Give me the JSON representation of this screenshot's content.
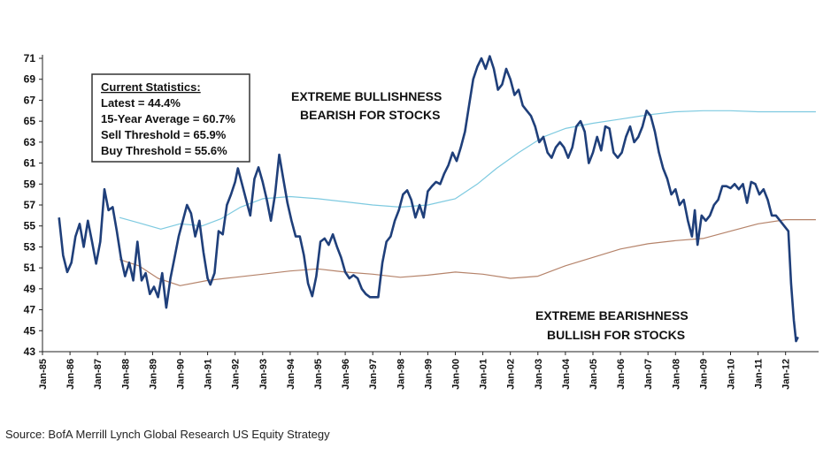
{
  "chart_data": {
    "type": "line",
    "ylim": [
      43,
      71
    ],
    "yticks": [
      43,
      45,
      47,
      49,
      51,
      53,
      55,
      57,
      59,
      61,
      63,
      65,
      67,
      69,
      71
    ],
    "xticks": [
      "Jan-85",
      "Jan-86",
      "Jan-87",
      "Jan-88",
      "Jan-89",
      "Jan-90",
      "Jan-91",
      "Jan-92",
      "Jan-93",
      "Jan-94",
      "Jan-95",
      "Jan-96",
      "Jan-97",
      "Jan-98",
      "Jan-99",
      "Jan-00",
      "Jan-01",
      "Jan-02",
      "Jan-03",
      "Jan-04",
      "Jan-05",
      "Jan-06",
      "Jan-07",
      "Jan-08",
      "Jan-09",
      "Jan-10",
      "Jan-11",
      "Jan-12"
    ],
    "xlim": [
      1985.0,
      2013.2
    ],
    "series": [
      {
        "key": "sell_side_indicator",
        "color": "#1f3f7a",
        "points": [
          [
            1985.6,
            55.8
          ],
          [
            1985.75,
            52.2
          ],
          [
            1985.9,
            50.6
          ],
          [
            1986.05,
            51.5
          ],
          [
            1986.2,
            54.0
          ],
          [
            1986.35,
            55.2
          ],
          [
            1986.5,
            53.0
          ],
          [
            1986.65,
            55.5
          ],
          [
            1986.8,
            53.5
          ],
          [
            1986.95,
            51.4
          ],
          [
            1987.1,
            53.5
          ],
          [
            1987.25,
            58.5
          ],
          [
            1987.4,
            56.5
          ],
          [
            1987.55,
            56.8
          ],
          [
            1987.7,
            54.5
          ],
          [
            1987.85,
            52.0
          ],
          [
            1988.0,
            50.2
          ],
          [
            1988.15,
            51.5
          ],
          [
            1988.3,
            49.8
          ],
          [
            1988.45,
            53.5
          ],
          [
            1988.6,
            49.8
          ],
          [
            1988.75,
            50.5
          ],
          [
            1988.9,
            48.5
          ],
          [
            1989.05,
            49.2
          ],
          [
            1989.2,
            48.2
          ],
          [
            1989.35,
            50.5
          ],
          [
            1989.5,
            47.2
          ],
          [
            1989.65,
            50.0
          ],
          [
            1989.8,
            52.0
          ],
          [
            1989.95,
            54.0
          ],
          [
            1990.1,
            55.5
          ],
          [
            1990.25,
            57.0
          ],
          [
            1990.4,
            56.2
          ],
          [
            1990.55,
            54.0
          ],
          [
            1990.7,
            55.5
          ],
          [
            1990.85,
            52.5
          ],
          [
            1991.0,
            50.0
          ],
          [
            1991.1,
            49.4
          ],
          [
            1991.25,
            50.5
          ],
          [
            1991.4,
            54.5
          ],
          [
            1991.55,
            54.2
          ],
          [
            1991.7,
            57.0
          ],
          [
            1991.85,
            58.0
          ],
          [
            1992.0,
            59.2
          ],
          [
            1992.1,
            60.5
          ],
          [
            1992.25,
            59.0
          ],
          [
            1992.4,
            57.5
          ],
          [
            1992.55,
            56.0
          ],
          [
            1992.7,
            59.5
          ],
          [
            1992.85,
            60.6
          ],
          [
            1993.0,
            59.2
          ],
          [
            1993.15,
            57.5
          ],
          [
            1993.3,
            55.5
          ],
          [
            1993.45,
            58.0
          ],
          [
            1993.6,
            61.8
          ],
          [
            1993.75,
            59.5
          ],
          [
            1993.9,
            57.2
          ],
          [
            1994.05,
            55.5
          ],
          [
            1994.2,
            54.0
          ],
          [
            1994.35,
            54.0
          ],
          [
            1994.5,
            52.2
          ],
          [
            1994.65,
            49.5
          ],
          [
            1994.8,
            48.3
          ],
          [
            1994.95,
            50.2
          ],
          [
            1995.1,
            53.5
          ],
          [
            1995.25,
            53.8
          ],
          [
            1995.4,
            53.2
          ],
          [
            1995.55,
            54.2
          ],
          [
            1995.7,
            53.0
          ],
          [
            1995.85,
            52.0
          ],
          [
            1996.0,
            50.6
          ],
          [
            1996.15,
            50.0
          ],
          [
            1996.3,
            50.3
          ],
          [
            1996.45,
            50.0
          ],
          [
            1996.6,
            49.0
          ],
          [
            1996.75,
            48.5
          ],
          [
            1996.9,
            48.2
          ],
          [
            1997.05,
            48.2
          ],
          [
            1997.2,
            48.2
          ],
          [
            1997.35,
            51.5
          ],
          [
            1997.5,
            53.5
          ],
          [
            1997.65,
            54.0
          ],
          [
            1997.8,
            55.5
          ],
          [
            1997.95,
            56.5
          ],
          [
            1998.1,
            58.0
          ],
          [
            1998.25,
            58.4
          ],
          [
            1998.4,
            57.5
          ],
          [
            1998.55,
            55.8
          ],
          [
            1998.7,
            57.0
          ],
          [
            1998.85,
            55.8
          ],
          [
            1999.0,
            58.3
          ],
          [
            1999.15,
            58.8
          ],
          [
            1999.3,
            59.2
          ],
          [
            1999.45,
            59.0
          ],
          [
            1999.6,
            60.0
          ],
          [
            1999.75,
            60.8
          ],
          [
            1999.9,
            62.0
          ],
          [
            2000.05,
            61.2
          ],
          [
            2000.2,
            62.5
          ],
          [
            2000.35,
            64.0
          ],
          [
            2000.5,
            66.5
          ],
          [
            2000.65,
            69.0
          ],
          [
            2000.8,
            70.2
          ],
          [
            2000.95,
            71.0
          ],
          [
            2001.1,
            70.0
          ],
          [
            2001.25,
            71.2
          ],
          [
            2001.4,
            70.0
          ],
          [
            2001.55,
            68.0
          ],
          [
            2001.7,
            68.5
          ],
          [
            2001.85,
            70.0
          ],
          [
            2002.0,
            69.0
          ],
          [
            2002.15,
            67.5
          ],
          [
            2002.3,
            68.0
          ],
          [
            2002.45,
            66.5
          ],
          [
            2002.6,
            66.0
          ],
          [
            2002.75,
            65.5
          ],
          [
            2002.9,
            64.5
          ],
          [
            2003.05,
            63.0
          ],
          [
            2003.2,
            63.5
          ],
          [
            2003.35,
            62.0
          ],
          [
            2003.5,
            61.5
          ],
          [
            2003.65,
            62.5
          ],
          [
            2003.8,
            63.0
          ],
          [
            2003.95,
            62.5
          ],
          [
            2004.1,
            61.5
          ],
          [
            2004.25,
            62.5
          ],
          [
            2004.4,
            64.5
          ],
          [
            2004.55,
            65.0
          ],
          [
            2004.7,
            64.0
          ],
          [
            2004.85,
            61.0
          ],
          [
            2005.0,
            62.0
          ],
          [
            2005.15,
            63.5
          ],
          [
            2005.3,
            62.2
          ],
          [
            2005.45,
            64.5
          ],
          [
            2005.6,
            64.3
          ],
          [
            2005.75,
            62.0
          ],
          [
            2005.9,
            61.5
          ],
          [
            2006.05,
            62.0
          ],
          [
            2006.2,
            63.5
          ],
          [
            2006.35,
            64.5
          ],
          [
            2006.5,
            63.0
          ],
          [
            2006.65,
            63.5
          ],
          [
            2006.8,
            64.5
          ],
          [
            2006.95,
            66.0
          ],
          [
            2007.1,
            65.5
          ],
          [
            2007.25,
            64.0
          ],
          [
            2007.4,
            62.0
          ],
          [
            2007.55,
            60.5
          ],
          [
            2007.7,
            59.5
          ],
          [
            2007.85,
            58.0
          ],
          [
            2008.0,
            58.5
          ],
          [
            2008.15,
            57.0
          ],
          [
            2008.3,
            57.5
          ],
          [
            2008.45,
            55.5
          ],
          [
            2008.6,
            54.0
          ],
          [
            2008.7,
            56.5
          ],
          [
            2008.8,
            53.2
          ],
          [
            2008.95,
            56.0
          ],
          [
            2009.1,
            55.5
          ],
          [
            2009.25,
            56.0
          ],
          [
            2009.4,
            57.0
          ],
          [
            2009.55,
            57.5
          ],
          [
            2009.7,
            58.8
          ],
          [
            2009.85,
            58.8
          ],
          [
            2010.0,
            58.6
          ],
          [
            2010.15,
            59.0
          ],
          [
            2010.3,
            58.5
          ],
          [
            2010.45,
            59.0
          ],
          [
            2010.6,
            57.2
          ],
          [
            2010.75,
            59.2
          ],
          [
            2010.9,
            59.0
          ],
          [
            2011.05,
            58.0
          ],
          [
            2011.2,
            58.5
          ],
          [
            2011.35,
            57.5
          ],
          [
            2011.5,
            56.0
          ],
          [
            2011.65,
            56.0
          ],
          [
            2011.8,
            55.5
          ],
          [
            2011.95,
            55.0
          ],
          [
            2012.1,
            54.5
          ],
          [
            2012.2,
            49.5
          ],
          [
            2012.3,
            46.0
          ],
          [
            2012.38,
            44.0
          ],
          [
            2012.45,
            44.4
          ]
        ]
      },
      {
        "key": "fifteen_year_average",
        "color": "#7ecae0",
        "points": [
          [
            1987.8,
            55.8
          ],
          [
            1988.5,
            55.3
          ],
          [
            1989.3,
            54.7
          ],
          [
            1990.0,
            55.2
          ],
          [
            1990.8,
            55.0
          ],
          [
            1991.5,
            55.7
          ],
          [
            1992.2,
            56.8
          ],
          [
            1993.0,
            57.6
          ],
          [
            1994.0,
            57.8
          ],
          [
            1995.0,
            57.6
          ],
          [
            1996.0,
            57.3
          ],
          [
            1997.0,
            57.0
          ],
          [
            1998.0,
            56.8
          ],
          [
            1999.0,
            57.0
          ],
          [
            2000.0,
            57.6
          ],
          [
            2000.8,
            59.0
          ],
          [
            2001.5,
            60.5
          ],
          [
            2002.3,
            62.0
          ],
          [
            2003.2,
            63.5
          ],
          [
            2004.0,
            64.3
          ],
          [
            2005.0,
            64.8
          ],
          [
            2006.0,
            65.2
          ],
          [
            2007.0,
            65.6
          ],
          [
            2008.0,
            65.9
          ],
          [
            2009.0,
            66.0
          ],
          [
            2010.0,
            66.0
          ],
          [
            2011.0,
            65.9
          ],
          [
            2013.1,
            65.9
          ]
        ]
      },
      {
        "key": "buy_threshold_history",
        "color": "#b5836a",
        "points": [
          [
            1987.8,
            51.8
          ],
          [
            1988.5,
            51.2
          ],
          [
            1989.2,
            50.0
          ],
          [
            1990.0,
            49.3
          ],
          [
            1991.0,
            49.8
          ],
          [
            1992.0,
            50.1
          ],
          [
            1993.0,
            50.4
          ],
          [
            1994.0,
            50.7
          ],
          [
            1995.0,
            50.9
          ],
          [
            1996.0,
            50.6
          ],
          [
            1997.0,
            50.4
          ],
          [
            1998.0,
            50.1
          ],
          [
            1999.0,
            50.3
          ],
          [
            2000.0,
            50.6
          ],
          [
            2001.0,
            50.4
          ],
          [
            2002.0,
            50.0
          ],
          [
            2003.0,
            50.2
          ],
          [
            2004.0,
            51.2
          ],
          [
            2005.0,
            52.0
          ],
          [
            2006.0,
            52.8
          ],
          [
            2007.0,
            53.3
          ],
          [
            2008.0,
            53.6
          ],
          [
            2009.0,
            53.8
          ],
          [
            2010.0,
            54.5
          ],
          [
            2011.0,
            55.2
          ],
          [
            2012.0,
            55.6
          ],
          [
            2013.1,
            55.6
          ]
        ]
      }
    ],
    "annotations": {
      "bull_line1": "EXTREME BULLISHNESS",
      "bull_line2": "BEARISH FOR STOCKS",
      "bear_line1": "EXTREME BEARISHNESS",
      "bear_line2": "BULLISH FOR STOCKS"
    },
    "stats_box": {
      "heading": "Current Statistics:",
      "lines": [
        "Latest = 44.4%",
        "15-Year Average = 60.7%",
        "Sell Threshold = 65.9%",
        "Buy Threshold = 55.6%"
      ]
    }
  },
  "source": "Source: BofA Merrill Lynch Global Research US Equity Strategy"
}
